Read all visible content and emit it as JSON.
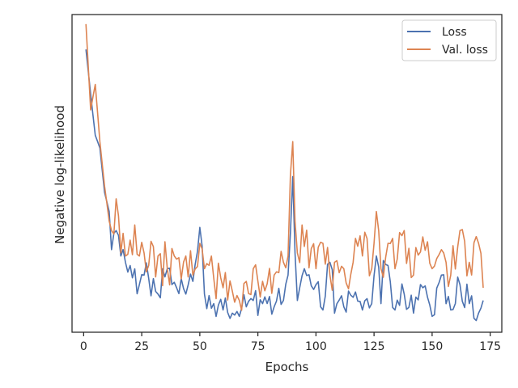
{
  "chart_data": {
    "type": "line",
    "xlabel": "Epochs",
    "ylabel": "Negative log-likelihood",
    "xlim": [
      -5,
      180
    ],
    "ylim": [
      0,
      1
    ],
    "xticks": [
      0,
      25,
      50,
      75,
      100,
      125,
      150,
      175
    ],
    "yticks_shown": false,
    "grid": false,
    "legend": {
      "placement": "top-right"
    },
    "series": [
      {
        "name": "Loss",
        "color": "#4c72b0",
        "keypoints": [
          [
            1,
            0.89
          ],
          [
            3,
            0.75
          ],
          [
            5,
            0.62
          ],
          [
            7,
            0.58
          ],
          [
            9,
            0.44
          ],
          [
            11,
            0.38
          ],
          [
            12,
            0.26
          ],
          [
            14,
            0.32
          ],
          [
            16,
            0.24
          ],
          [
            18,
            0.22
          ],
          [
            20,
            0.21
          ],
          [
            24,
            0.15
          ],
          [
            28,
            0.17
          ],
          [
            32,
            0.12
          ],
          [
            36,
            0.2
          ],
          [
            40,
            0.14
          ],
          [
            44,
            0.12
          ],
          [
            47,
            0.16
          ],
          [
            50,
            0.33
          ],
          [
            52,
            0.12
          ],
          [
            56,
            0.09
          ],
          [
            60,
            0.07
          ],
          [
            64,
            0.06
          ],
          [
            67,
            0.05
          ],
          [
            70,
            0.08
          ],
          [
            73,
            0.1
          ],
          [
            77,
            0.09
          ],
          [
            82,
            0.08
          ],
          [
            86,
            0.1
          ],
          [
            88,
            0.18
          ],
          [
            90,
            0.49
          ],
          [
            91,
            0.25
          ],
          [
            92,
            0.1
          ],
          [
            95,
            0.2
          ],
          [
            100,
            0.15
          ],
          [
            103,
            0.07
          ],
          [
            106,
            0.22
          ],
          [
            108,
            0.06
          ],
          [
            112,
            0.08
          ],
          [
            116,
            0.11
          ],
          [
            120,
            0.07
          ],
          [
            124,
            0.09
          ],
          [
            126,
            0.24
          ],
          [
            128,
            0.09
          ],
          [
            131,
            0.21
          ],
          [
            134,
            0.07
          ],
          [
            138,
            0.12
          ],
          [
            142,
            0.06
          ],
          [
            146,
            0.14
          ],
          [
            150,
            0.05
          ],
          [
            154,
            0.18
          ],
          [
            158,
            0.07
          ],
          [
            162,
            0.15
          ],
          [
            166,
            0.09
          ],
          [
            170,
            0.06
          ],
          [
            172,
            0.1
          ]
        ]
      },
      {
        "name": "Val. loss",
        "color": "#dd8452",
        "keypoints": [
          [
            1,
            0.97
          ],
          [
            3,
            0.7
          ],
          [
            5,
            0.78
          ],
          [
            7,
            0.6
          ],
          [
            9,
            0.46
          ],
          [
            11,
            0.35
          ],
          [
            12,
            0.32
          ],
          [
            14,
            0.42
          ],
          [
            16,
            0.25
          ],
          [
            18,
            0.24
          ],
          [
            20,
            0.29
          ],
          [
            24,
            0.24
          ],
          [
            28,
            0.21
          ],
          [
            32,
            0.24
          ],
          [
            36,
            0.2
          ],
          [
            40,
            0.23
          ],
          [
            44,
            0.24
          ],
          [
            47,
            0.18
          ],
          [
            50,
            0.28
          ],
          [
            52,
            0.2
          ],
          [
            56,
            0.17
          ],
          [
            60,
            0.14
          ],
          [
            64,
            0.13
          ],
          [
            67,
            0.1
          ],
          [
            70,
            0.16
          ],
          [
            73,
            0.2
          ],
          [
            77,
            0.16
          ],
          [
            82,
            0.18
          ],
          [
            86,
            0.22
          ],
          [
            88,
            0.24
          ],
          [
            90,
            0.6
          ],
          [
            91,
            0.35
          ],
          [
            92,
            0.25
          ],
          [
            95,
            0.27
          ],
          [
            100,
            0.2
          ],
          [
            103,
            0.28
          ],
          [
            106,
            0.18
          ],
          [
            108,
            0.22
          ],
          [
            112,
            0.2
          ],
          [
            116,
            0.22
          ],
          [
            120,
            0.24
          ],
          [
            124,
            0.2
          ],
          [
            126,
            0.38
          ],
          [
            128,
            0.2
          ],
          [
            131,
            0.28
          ],
          [
            134,
            0.2
          ],
          [
            138,
            0.32
          ],
          [
            142,
            0.18
          ],
          [
            146,
            0.3
          ],
          [
            150,
            0.2
          ],
          [
            154,
            0.26
          ],
          [
            158,
            0.18
          ],
          [
            162,
            0.32
          ],
          [
            166,
            0.22
          ],
          [
            170,
            0.28
          ],
          [
            172,
            0.14
          ]
        ]
      }
    ]
  }
}
